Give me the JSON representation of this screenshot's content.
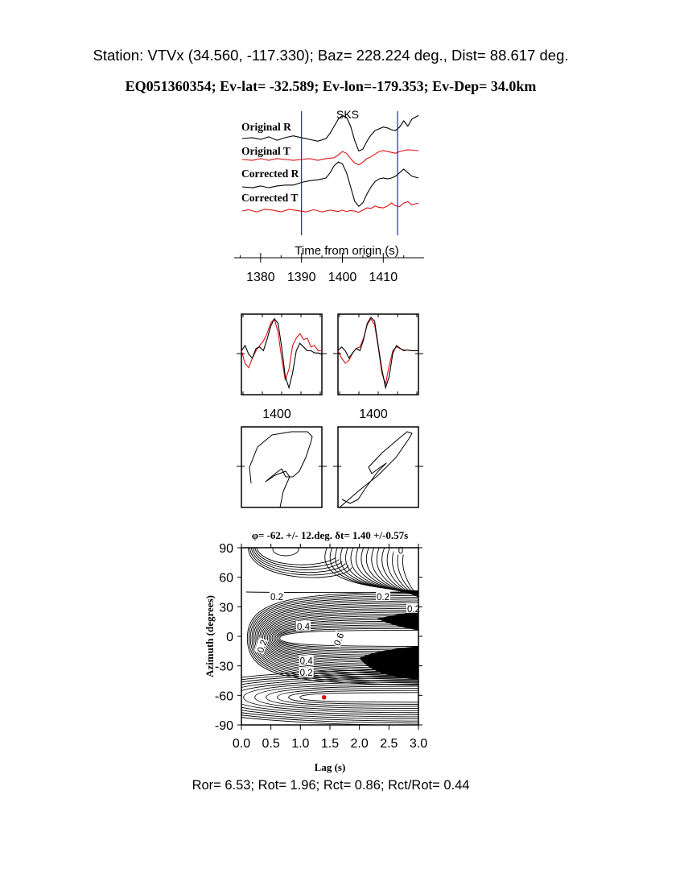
{
  "header": {
    "station_line": "Station: VTVx (34.560, -117.330); Baz=  228.224 deg., Dist=   88.617 deg.",
    "event_line": "EQ051360354; Ev-lat= -32.589; Ev-lon=-179.353; Ev-Dep= 34.0km"
  },
  "traces": {
    "phase_label": "SKS",
    "labels": [
      "Original R",
      "Original T",
      "Corrected R",
      "Corrected T"
    ],
    "colors": {
      "radial": "#000000",
      "transverse": "#dd1111",
      "window": "#2222cc",
      "phase": "#dd1111"
    }
  },
  "chart_data": [
    {
      "type": "line",
      "id": "seismograms",
      "xlabel": "Time from origin (s)",
      "x_ticks": [
        1380,
        1390,
        1400,
        1410
      ],
      "xlim": [
        1375.5,
        1418.6
      ],
      "window": [
        1390,
        1413.5
      ],
      "series": [
        {
          "name": "Original R",
          "t": [
            1375.5,
            1378,
            1380,
            1382,
            1384,
            1386,
            1388,
            1390,
            1392,
            1394,
            1396,
            1397,
            1398,
            1399,
            1400,
            1401,
            1402,
            1403,
            1404,
            1405,
            1406,
            1407,
            1408,
            1409,
            1410,
            1411,
            1412,
            1413,
            1414,
            1415,
            1416,
            1417,
            1418.6
          ],
          "a": [
            0.0,
            0.1,
            -0.1,
            0.2,
            -0.2,
            0.1,
            0.3,
            0.1,
            -0.1,
            -0.3,
            0.0,
            0.6,
            1.4,
            2.2,
            2.6,
            2.4,
            1.4,
            -0.2,
            -1.4,
            -1.2,
            -0.3,
            0.4,
            0.9,
            1.1,
            1.3,
            1.2,
            1.0,
            0.9,
            1.3,
            2.0,
            1.4,
            2.2,
            2.6
          ]
        },
        {
          "name": "Original T",
          "t": [
            1375.5,
            1378,
            1380,
            1382,
            1384,
            1386,
            1388,
            1390,
            1392,
            1394,
            1396,
            1398,
            1399,
            1400,
            1401,
            1402,
            1403,
            1404,
            1405,
            1406,
            1407,
            1408,
            1409,
            1410,
            1411,
            1412,
            1413,
            1414,
            1416,
            1418.6
          ],
          "a": [
            0.0,
            -0.1,
            0.1,
            -0.1,
            0.1,
            0.0,
            -0.1,
            0.0,
            0.1,
            -0.1,
            0.1,
            0.2,
            0.5,
            0.9,
            0.7,
            0.1,
            -0.4,
            -0.6,
            -0.3,
            0.1,
            0.3,
            0.6,
            0.9,
            1.0,
            0.9,
            0.8,
            0.7,
            0.9,
            1.1,
            1.0
          ]
        },
        {
          "name": "Corrected R",
          "t": [
            1375.5,
            1378,
            1380,
            1382,
            1384,
            1386,
            1388,
            1390,
            1392,
            1394,
            1396,
            1397,
            1398,
            1399,
            1400,
            1401,
            1402,
            1403,
            1404,
            1405,
            1406,
            1407,
            1408,
            1409,
            1410,
            1411,
            1412,
            1413,
            1414,
            1415,
            1416,
            1417,
            1418.6
          ],
          "a": [
            0.0,
            -0.1,
            0.1,
            -0.1,
            0.1,
            0.2,
            0.2,
            0.5,
            0.7,
            0.8,
            1.0,
            1.6,
            2.4,
            2.8,
            2.6,
            1.6,
            0.0,
            -1.6,
            -2.2,
            -1.8,
            -0.8,
            0.0,
            0.6,
            0.9,
            1.0,
            0.9,
            1.0,
            1.2,
            1.6,
            2.0,
            1.6,
            1.2,
            1.0
          ]
        },
        {
          "name": "Corrected T",
          "t": [
            1375.5,
            1377,
            1379,
            1381,
            1383,
            1385,
            1387,
            1389,
            1391,
            1393,
            1395,
            1397,
            1399,
            1400,
            1401,
            1402,
            1403,
            1404,
            1405,
            1406,
            1407,
            1408,
            1409,
            1410,
            1411,
            1412,
            1413,
            1414,
            1415,
            1416,
            1417,
            1418.6
          ],
          "a": [
            0.0,
            0.15,
            -0.1,
            0.2,
            0.1,
            -0.1,
            0.2,
            0.05,
            -0.1,
            0.15,
            -0.1,
            0.1,
            -0.05,
            0.1,
            -0.05,
            0.05,
            0.0,
            -0.15,
            0.1,
            0.35,
            0.3,
            0.55,
            0.4,
            0.35,
            0.55,
            0.9,
            0.6,
            0.5,
            0.9,
            1.05,
            0.7,
            0.9
          ]
        }
      ]
    },
    {
      "type": "line",
      "id": "waveform-comparison",
      "x_ticks": [
        1400,
        1400
      ],
      "panels": [
        {
          "name": "original",
          "black": [
            0.55,
            0.62,
            0.5,
            0.45,
            0.58,
            0.6,
            0.55,
            0.7,
            0.88,
            0.98,
            0.92,
            0.6,
            0.2,
            0.05,
            0.25,
            0.55,
            0.65,
            0.6,
            0.55,
            0.55,
            0.52,
            0.52,
            0.5
          ],
          "red": [
            0.55,
            0.38,
            0.32,
            0.45,
            0.55,
            0.62,
            0.68,
            0.78,
            0.92,
            0.98,
            0.8,
            0.45,
            0.15,
            0.3,
            0.62,
            0.72,
            0.78,
            0.7,
            0.72,
            0.6,
            0.62,
            0.55,
            0.55
          ]
        },
        {
          "name": "corrected",
          "black": [
            0.55,
            0.6,
            0.55,
            0.45,
            0.52,
            0.58,
            0.55,
            0.7,
            0.92,
            1.0,
            0.95,
            0.62,
            0.3,
            0.05,
            0.2,
            0.52,
            0.62,
            0.58,
            0.55,
            0.56,
            0.55,
            0.55,
            0.55
          ],
          "red": [
            0.55,
            0.45,
            0.38,
            0.42,
            0.52,
            0.58,
            0.6,
            0.72,
            0.9,
            0.98,
            0.9,
            0.6,
            0.25,
            0.1,
            0.35,
            0.55,
            0.6,
            0.58,
            0.56,
            0.56,
            0.55,
            0.55,
            0.55
          ]
        }
      ]
    },
    {
      "type": "line",
      "id": "particle-motion",
      "panels": [
        {
          "name": "original",
          "xy": [
            [
              0.12,
              0.7
            ],
            [
              0.1,
              0.5
            ],
            [
              0.2,
              0.25
            ],
            [
              0.38,
              0.1
            ],
            [
              0.62,
              0.06
            ],
            [
              0.82,
              0.06
            ],
            [
              0.88,
              0.12
            ],
            [
              0.86,
              0.2
            ],
            [
              0.8,
              0.38
            ],
            [
              0.72,
              0.55
            ],
            [
              0.64,
              0.62
            ],
            [
              0.55,
              0.62
            ],
            [
              0.5,
              0.52
            ],
            [
              0.42,
              0.58
            ],
            [
              0.3,
              0.68
            ],
            [
              0.42,
              0.6
            ],
            [
              0.55,
              0.55
            ],
            [
              0.6,
              0.62
            ],
            [
              0.52,
              0.8
            ],
            [
              0.48,
              1.0
            ]
          ]
        },
        {
          "name": "corrected",
          "xy": [
            [
              0.02,
              1.0
            ],
            [
              0.25,
              0.8
            ],
            [
              0.5,
              0.6
            ],
            [
              0.72,
              0.38
            ],
            [
              0.88,
              0.15
            ],
            [
              0.92,
              0.08
            ],
            [
              0.86,
              0.06
            ],
            [
              0.75,
              0.15
            ],
            [
              0.55,
              0.32
            ],
            [
              0.38,
              0.5
            ],
            [
              0.42,
              0.58
            ],
            [
              0.5,
              0.52
            ],
            [
              0.6,
              0.45
            ],
            [
              0.5,
              0.55
            ],
            [
              0.35,
              0.75
            ],
            [
              0.25,
              0.9
            ],
            [
              0.15,
              0.95
            ],
            [
              0.05,
              0.9
            ]
          ]
        }
      ]
    },
    {
      "type": "heatmap",
      "id": "misfit-grid",
      "title": "φ= -62. +/- 12.deg. δt= 1.40 +/-0.57s",
      "xlabel": "Lag (s)",
      "ylabel": "Azimuth (degrees)",
      "xlim": [
        0.0,
        3.0
      ],
      "ylim": [
        -90,
        90
      ],
      "x_ticks": [
        "0.0",
        "0.5",
        "1.0",
        "1.5",
        "2.0",
        "2.5",
        "3.0"
      ],
      "y_ticks": [
        "90",
        "60",
        "30",
        "0",
        "-30",
        "-60",
        "-90"
      ],
      "contour_labels": [
        "0",
        "0.2",
        "0.2",
        "0.2",
        "0.4",
        "0.6",
        "0.4",
        "0.2",
        "0.2"
      ],
      "best_fit": {
        "lag": 1.4,
        "azimuth": -62
      },
      "best_fit_color": "#dd1111"
    }
  ],
  "stats": "Ror= 6.53; Rot= 1.96; Rct= 0.86; Rct/Rot= 0.44"
}
